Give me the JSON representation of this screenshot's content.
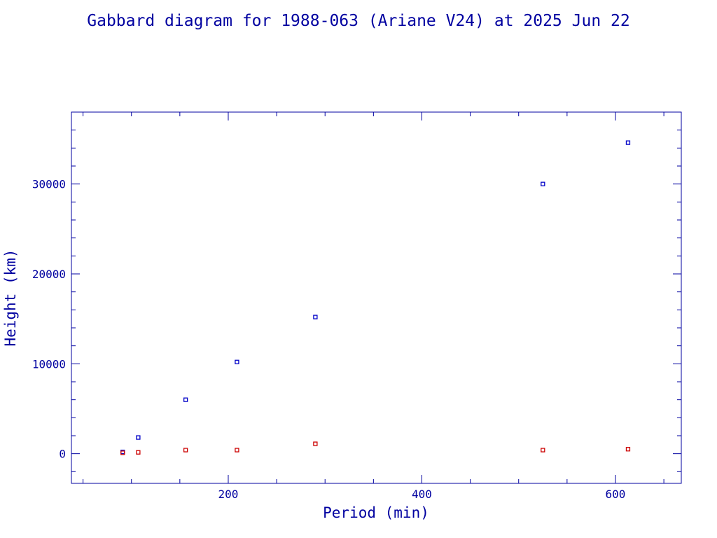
{
  "chart_data": {
    "type": "scatter",
    "title": "Gabbard diagram for 1988-063 (Ariane V24) at 2025 Jun 22",
    "xlabel": "Period (min)",
    "ylabel": "Height (km)",
    "xlim": [
      38,
      668
    ],
    "ylim": [
      -3300,
      38000
    ],
    "xticks_major": [
      200,
      400,
      600
    ],
    "xticks_minor_step": 50,
    "yticks_major": [
      0,
      10000,
      20000,
      30000
    ],
    "yticks_minor_step": 2000,
    "grid": false,
    "colors": {
      "axes": "#0000a0",
      "apogee": "#0000c8",
      "perigee": "#cc0000"
    },
    "series": [
      {
        "role": "apogee",
        "x": [
          91,
          107,
          156,
          209,
          290,
          525,
          613
        ],
        "y": [
          200,
          1800,
          6000,
          10200,
          15200,
          30000,
          34600
        ]
      },
      {
        "role": "perigee",
        "x": [
          91,
          107,
          156,
          209,
          290,
          525,
          613
        ],
        "y": [
          100,
          150,
          400,
          400,
          1100,
          400,
          500
        ]
      }
    ]
  }
}
